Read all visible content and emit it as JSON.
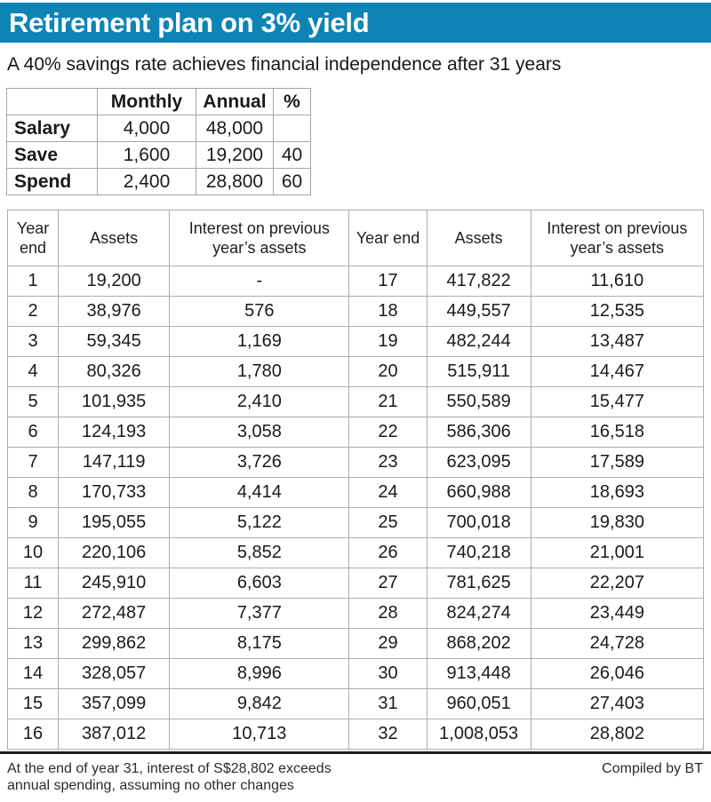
{
  "header": {
    "title": "Retirement plan on 3% yield",
    "subtitle": "A 40% savings rate achieves financial independence after 31 years",
    "accent_color": "#0e84b4"
  },
  "summary_table": {
    "columns": [
      "",
      "Monthly",
      "Annual",
      "%"
    ],
    "rows": [
      {
        "label": "Salary",
        "monthly": "4,000",
        "annual": "48,000",
        "pct": ""
      },
      {
        "label": "Save",
        "monthly": "1,600",
        "annual": "19,200",
        "pct": "40"
      },
      {
        "label": "Spend",
        "monthly": "2,400",
        "annual": "28,800",
        "pct": "60"
      }
    ]
  },
  "main_table": {
    "headers": [
      "Year end",
      "Assets",
      "Interest on previous year’s assets",
      "Year end",
      "Assets",
      "Interest on previous year’s assets"
    ],
    "rows": [
      [
        "1",
        "19,200",
        "-",
        "17",
        "417,822",
        "11,610"
      ],
      [
        "2",
        "38,976",
        "576",
        "18",
        "449,557",
        "12,535"
      ],
      [
        "3",
        "59,345",
        "1,169",
        "19",
        "482,244",
        "13,487"
      ],
      [
        "4",
        "80,326",
        "1,780",
        "20",
        "515,911",
        "14,467"
      ],
      [
        "5",
        "101,935",
        "2,410",
        "21",
        "550,589",
        "15,477"
      ],
      [
        "6",
        "124,193",
        "3,058",
        "22",
        "586,306",
        "16,518"
      ],
      [
        "7",
        "147,119",
        "3,726",
        "23",
        "623,095",
        "17,589"
      ],
      [
        "8",
        "170,733",
        "4,414",
        "24",
        "660,988",
        "18,693"
      ],
      [
        "9",
        "195,055",
        "5,122",
        "25",
        "700,018",
        "19,830"
      ],
      [
        "10",
        "220,106",
        "5,852",
        "26",
        "740,218",
        "21,001"
      ],
      [
        "11",
        "245,910",
        "6,603",
        "27",
        "781,625",
        "22,207"
      ],
      [
        "12",
        "272,487",
        "7,377",
        "28",
        "824,274",
        "23,449"
      ],
      [
        "13",
        "299,862",
        "8,175",
        "29",
        "868,202",
        "24,728"
      ],
      [
        "14",
        "328,057",
        "8,996",
        "30",
        "913,448",
        "26,046"
      ],
      [
        "15",
        "357,099",
        "9,842",
        "31",
        "960,051",
        "27,403"
      ],
      [
        "16",
        "387,012",
        "10,713",
        "32",
        "1,008,053",
        "28,802"
      ]
    ]
  },
  "footer": {
    "note_line1": "At the end of year 31, interest of S$28,802 exceeds",
    "note_line2": "annual spending, assuming no other changes",
    "credit": "Compiled by BT"
  },
  "chart_data": [
    {
      "type": "table",
      "columns": [
        "",
        "Monthly",
        "Annual",
        "%"
      ],
      "rows": [
        [
          "Salary",
          4000,
          48000,
          null
        ],
        [
          "Save",
          1600,
          19200,
          40
        ],
        [
          "Spend",
          2400,
          28800,
          60
        ]
      ]
    },
    {
      "type": "table",
      "columns": [
        "Year end",
        "Assets",
        "Interest on previous year's assets"
      ],
      "rows": [
        [
          1,
          19200,
          null
        ],
        [
          2,
          38976,
          576
        ],
        [
          3,
          59345,
          1169
        ],
        [
          4,
          80326,
          1780
        ],
        [
          5,
          101935,
          2410
        ],
        [
          6,
          124193,
          3058
        ],
        [
          7,
          147119,
          3726
        ],
        [
          8,
          170733,
          4414
        ],
        [
          9,
          195055,
          5122
        ],
        [
          10,
          220106,
          5852
        ],
        [
          11,
          245910,
          6603
        ],
        [
          12,
          272487,
          7377
        ],
        [
          13,
          299862,
          8175
        ],
        [
          14,
          328057,
          8996
        ],
        [
          15,
          357099,
          9842
        ],
        [
          16,
          387012,
          10713
        ],
        [
          17,
          417822,
          11610
        ],
        [
          18,
          449557,
          12535
        ],
        [
          19,
          482244,
          13487
        ],
        [
          20,
          515911,
          14467
        ],
        [
          21,
          550589,
          15477
        ],
        [
          22,
          586306,
          16518
        ],
        [
          23,
          623095,
          17589
        ],
        [
          24,
          660988,
          18693
        ],
        [
          25,
          700018,
          19830
        ],
        [
          26,
          740218,
          21001
        ],
        [
          27,
          781625,
          22207
        ],
        [
          28,
          824274,
          23449
        ],
        [
          29,
          868202,
          24728
        ],
        [
          30,
          913448,
          26046
        ],
        [
          31,
          960051,
          27403
        ],
        [
          32,
          1008053,
          28802
        ]
      ]
    }
  ]
}
